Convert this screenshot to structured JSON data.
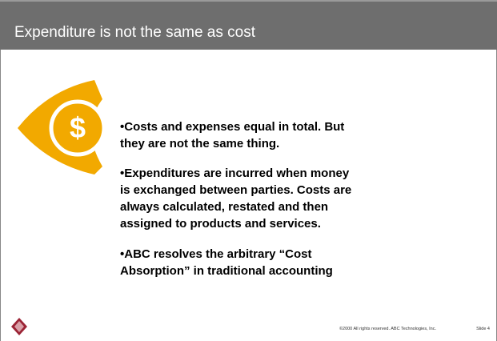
{
  "header": {
    "title": "Expenditure is not the same as cost"
  },
  "bullets": [
    [
      "•Costs and expenses equal in total. But",
      "they are not the same thing."
    ],
    [
      "•Expenditures are incurred when money",
      "is exchanged between parties. Costs are",
      "always calculated, restated and then",
      "assigned to products and services."
    ],
    [
      "•ABC resolves the arbitrary “Cost",
      "Absorption” in traditional accounting"
    ]
  ],
  "footer": {
    "copyright": "©2000 All rights reserved. ABC Technologies, Inc.",
    "slide": "Slide 4"
  }
}
